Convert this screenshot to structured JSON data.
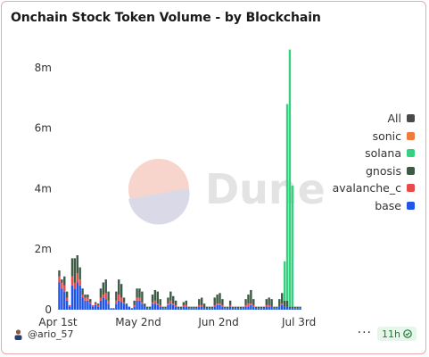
{
  "title": "Onchain Stock Token Volume - by Blockchain",
  "legend": [
    {
      "label": "All",
      "color": "#4a4a4a"
    },
    {
      "label": "sonic",
      "color": "#f07a3a"
    },
    {
      "label": "solana",
      "color": "#34d27e"
    },
    {
      "label": "gnosis",
      "color": "#3c5a45"
    },
    {
      "label": "avalanche_c",
      "color": "#e84a4a"
    },
    {
      "label": "base",
      "color": "#1f55e8"
    }
  ],
  "watermark": "Dune",
  "footer": {
    "author": "@ario_57",
    "age": "11h",
    "more": "···"
  },
  "chart_data": {
    "type": "bar",
    "stacked": true,
    "xlabel": "",
    "ylabel": "",
    "ylim": [
      0,
      9000000
    ],
    "yticks": [
      0,
      2000000,
      4000000,
      6000000,
      8000000
    ],
    "ytick_labels": [
      "0",
      "2m",
      "4m",
      "6m",
      "8m"
    ],
    "xtick_labels": [
      "Apr 1st",
      "May 2nd",
      "Jun 2nd",
      "Jul 3rd"
    ],
    "x_start": "2025-04-01",
    "x_end": "2025-07-04",
    "tick_dates": [
      "2025-04-01",
      "2025-05-02",
      "2025-06-02",
      "2025-07-03"
    ],
    "series_order": [
      "base",
      "avalanche_c",
      "gnosis",
      "sonic",
      "solana"
    ],
    "series": [
      {
        "name": "base",
        "color": "#1f55e8",
        "values": [
          900000,
          700000,
          600000,
          300000,
          100000,
          800000,
          700000,
          900000,
          800000,
          400000,
          300000,
          300000,
          200000,
          100000,
          150000,
          100000,
          300000,
          400000,
          350000,
          200000,
          50000,
          50000,
          200000,
          300000,
          250000,
          200000,
          150000,
          100000,
          50000,
          100000,
          300000,
          300000,
          200000,
          100000,
          50000,
          50000,
          200000,
          200000,
          150000,
          100000,
          50000,
          50000,
          150000,
          200000,
          150000,
          100000,
          50000,
          50000,
          100000,
          100000,
          50000,
          50000,
          50000,
          50000,
          100000,
          100000,
          50000,
          50000,
          50000,
          50000,
          100000,
          150000,
          150000,
          100000,
          50000,
          50000,
          100000,
          50000,
          50000,
          50000,
          50000,
          50000,
          100000,
          100000,
          150000,
          100000,
          50000,
          50000,
          50000,
          50000,
          100000,
          100000,
          100000,
          50000,
          50000,
          100000,
          150000,
          100000,
          100000,
          50000,
          50000,
          50000,
          50000,
          50000
        ]
      },
      {
        "name": "avalanche_c",
        "color": "#e84a4a",
        "values": [
          200000,
          200000,
          200000,
          100000,
          50000,
          300000,
          200000,
          300000,
          200000,
          100000,
          100000,
          100000,
          50000,
          50000,
          50000,
          50000,
          100000,
          100000,
          200000,
          100000,
          0,
          0,
          100000,
          200000,
          150000,
          50000,
          0,
          0,
          0,
          50000,
          100000,
          100000,
          50000,
          0,
          0,
          0,
          50000,
          100000,
          50000,
          50000,
          0,
          0,
          50000,
          100000,
          50000,
          50000,
          0,
          0,
          50000,
          50000,
          0,
          0,
          0,
          0,
          50000,
          50000,
          0,
          0,
          0,
          0,
          50000,
          50000,
          50000,
          50000,
          0,
          0,
          50000,
          0,
          0,
          0,
          0,
          0,
          50000,
          100000,
          50000,
          50000,
          0,
          0,
          0,
          0,
          50000,
          50000,
          0,
          0,
          0,
          0,
          50000,
          0,
          0,
          0,
          0,
          0,
          0,
          0
        ]
      },
      {
        "name": "gnosis",
        "color": "#3c5a45",
        "values": [
          200000,
          100000,
          300000,
          200000,
          0,
          600000,
          800000,
          600000,
          400000,
          200000,
          100000,
          100000,
          100000,
          0,
          50000,
          50000,
          300000,
          400000,
          450000,
          300000,
          0,
          0,
          300000,
          500000,
          450000,
          150000,
          50000,
          0,
          0,
          150000,
          300000,
          300000,
          350000,
          100000,
          50000,
          50000,
          250000,
          350000,
          400000,
          200000,
          50000,
          50000,
          200000,
          300000,
          250000,
          150000,
          50000,
          50000,
          100000,
          150000,
          50000,
          50000,
          50000,
          50000,
          200000,
          250000,
          150000,
          50000,
          50000,
          50000,
          250000,
          300000,
          350000,
          200000,
          50000,
          50000,
          150000,
          50000,
          50000,
          50000,
          50000,
          50000,
          200000,
          300000,
          450000,
          200000,
          50000,
          50000,
          50000,
          50000,
          200000,
          250000,
          250000,
          50000,
          50000,
          250000,
          350000,
          200000,
          200000,
          50000,
          50000,
          50000,
          50000,
          50000
        ]
      },
      {
        "name": "sonic",
        "color": "#f07a3a",
        "values": [
          0,
          0,
          0,
          0,
          0,
          0,
          0,
          0,
          0,
          0,
          0,
          0,
          0,
          0,
          0,
          0,
          0,
          0,
          0,
          0,
          0,
          0,
          0,
          0,
          0,
          0,
          0,
          0,
          0,
          0,
          0,
          0,
          0,
          0,
          0,
          0,
          0,
          0,
          0,
          0,
          0,
          0,
          0,
          0,
          0,
          0,
          0,
          0,
          0,
          0,
          0,
          0,
          0,
          0,
          0,
          0,
          0,
          0,
          0,
          0,
          0,
          0,
          0,
          0,
          0,
          0,
          0,
          0,
          0,
          0,
          0,
          0,
          0,
          0,
          0,
          0,
          0,
          0,
          0,
          0,
          0,
          0,
          0,
          0,
          0,
          0,
          0,
          0,
          0,
          0,
          0,
          0,
          0,
          0,
          0,
          0,
          0,
          0
        ]
      },
      {
        "name": "solana",
        "color": "#34d27e",
        "values": [
          0,
          0,
          0,
          0,
          0,
          0,
          0,
          0,
          0,
          0,
          0,
          0,
          0,
          0,
          0,
          0,
          0,
          0,
          0,
          0,
          0,
          0,
          0,
          0,
          0,
          0,
          0,
          0,
          0,
          0,
          0,
          0,
          0,
          0,
          0,
          0,
          0,
          0,
          0,
          0,
          0,
          0,
          0,
          0,
          0,
          0,
          0,
          0,
          0,
          0,
          0,
          0,
          0,
          0,
          0,
          0,
          0,
          0,
          0,
          0,
          0,
          0,
          0,
          0,
          0,
          0,
          0,
          0,
          0,
          0,
          0,
          0,
          0,
          0,
          0,
          0,
          0,
          0,
          0,
          0,
          0,
          0,
          0,
          0,
          0,
          0,
          0,
          1300000,
          6500000,
          8500000,
          4000000,
          0,
          0,
          0,
          0
        ]
      }
    ]
  }
}
